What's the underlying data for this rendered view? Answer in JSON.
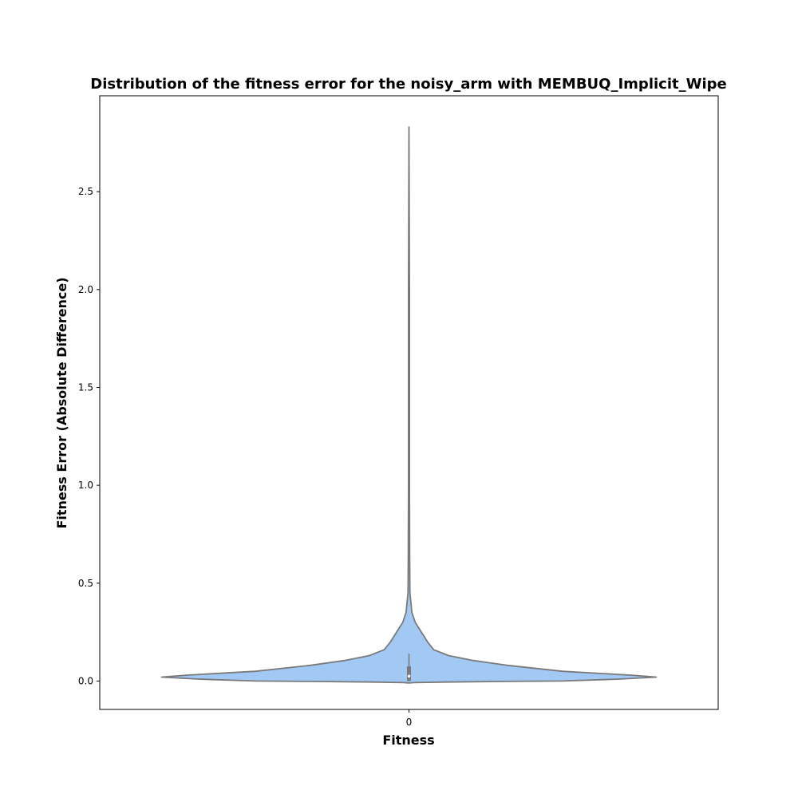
{
  "chart_data": {
    "type": "violin",
    "title": "Distribution of the fitness error for the noisy_arm with MEMBUQ_Implicit_Wipe",
    "xlabel": "Fitness",
    "ylabel": "Fitness Error (Absolute Difference)",
    "categories": [
      "0"
    ],
    "ylim": [
      -0.145,
      2.99
    ],
    "yticks": [
      "0.0",
      "0.5",
      "1.0",
      "1.5",
      "2.0",
      "2.5"
    ],
    "grid": false,
    "legend": "none",
    "fill_color": "#a1c9f4",
    "edge_color": "#7a7a7a",
    "violin": {
      "min": -0.01,
      "max": 2.83,
      "q1": 0.0,
      "median": 0.025,
      "q3": 0.075,
      "whisker_high": 0.14,
      "density_profile": [
        [
          -0.01,
          0.0
        ],
        [
          -0.008,
          0.02
        ],
        [
          -0.005,
          0.15
        ],
        [
          -0.002,
          0.4
        ],
        [
          0.0,
          0.62
        ],
        [
          0.01,
          0.85
        ],
        [
          0.02,
          1.0
        ],
        [
          0.03,
          0.9
        ],
        [
          0.05,
          0.62
        ],
        [
          0.08,
          0.4
        ],
        [
          0.105,
          0.26
        ],
        [
          0.13,
          0.16
        ],
        [
          0.16,
          0.1
        ],
        [
          0.2,
          0.075
        ],
        [
          0.25,
          0.05
        ],
        [
          0.3,
          0.025
        ],
        [
          0.35,
          0.012
        ],
        [
          0.45,
          0.004
        ],
        [
          0.6,
          0.003
        ],
        [
          1.0,
          0.002
        ],
        [
          2.0,
          0.002
        ],
        [
          2.83,
          0.0
        ]
      ]
    }
  }
}
